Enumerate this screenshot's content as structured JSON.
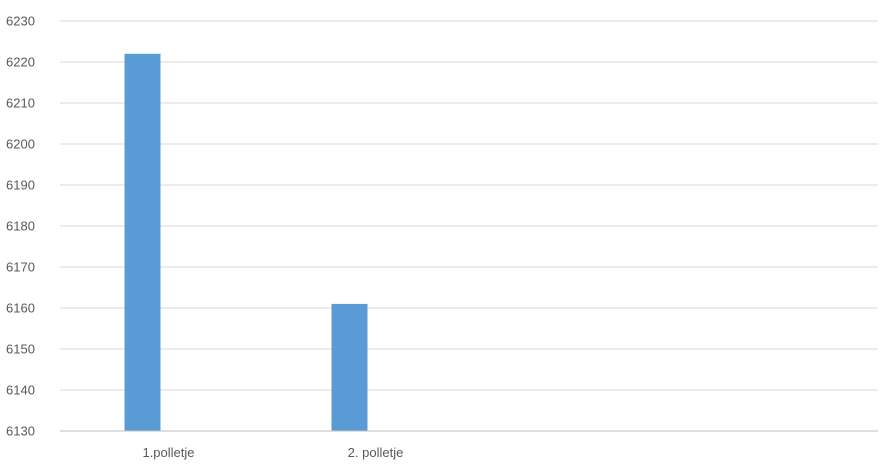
{
  "chart_data": {
    "type": "bar",
    "title": "",
    "xlabel": "",
    "ylabel": "",
    "categories": [
      "1.polletje",
      "2. polletje"
    ],
    "values": [
      6222,
      6161
    ],
    "ylim": [
      6130,
      6230
    ],
    "yticks": [
      6130,
      6140,
      6150,
      6160,
      6170,
      6180,
      6190,
      6200,
      6210,
      6220,
      6230
    ],
    "grid": true,
    "legend": "none",
    "bar_color": "#5b9bd5"
  }
}
